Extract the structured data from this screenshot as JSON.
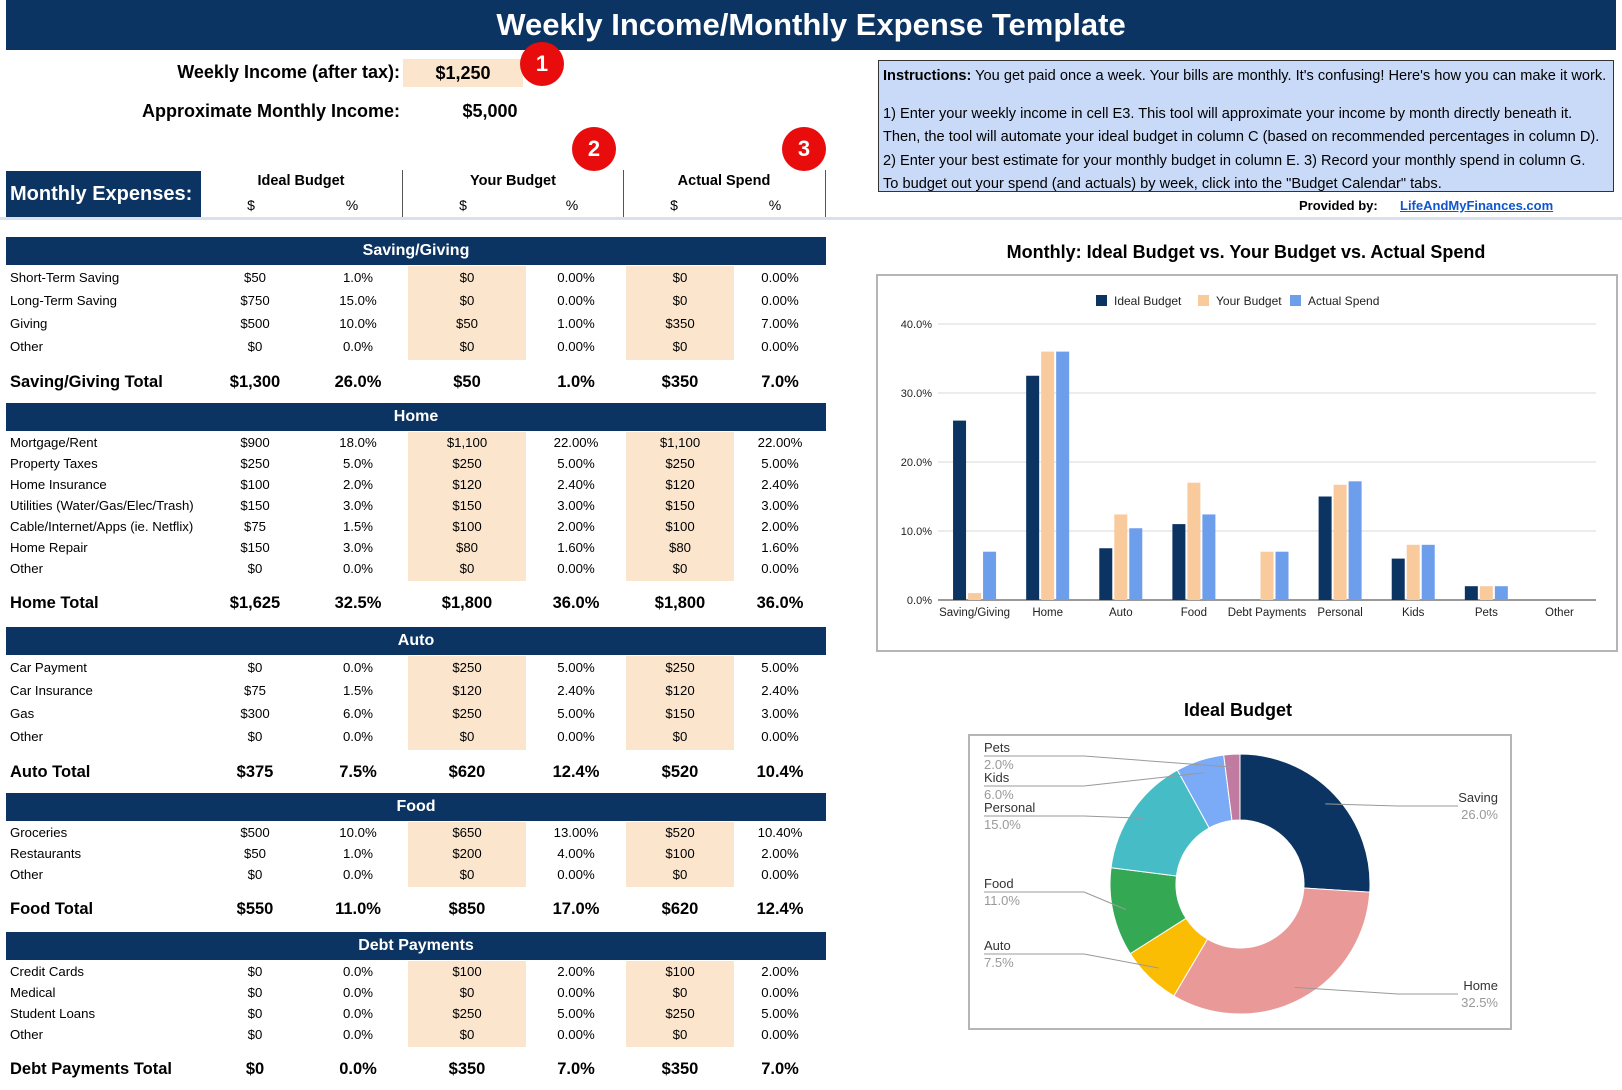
{
  "title": "Weekly Income/Monthly Expense Template",
  "income": {
    "weekly_label": "Weekly Income (after tax):",
    "weekly_value": "$1,250",
    "monthly_label": "Approximate Monthly Income:",
    "monthly_value": "$5,000"
  },
  "badges": [
    "1",
    "2",
    "3"
  ],
  "instructions": {
    "bold": "Instructions:",
    "line1": " You get paid once a week. Your bills are monthly. It's confusing! Here's how you can make it work.",
    "line2": "1) Enter your weekly income in cell E3. This tool will approximate your income by month directly beneath it.",
    "line3": "Then, the tool will automate your ideal budget in column C (based on recommended percentages in column D).",
    "line4": "2) Enter your best estimate for your monthly budget in column E. 3) Record your monthly spend in column G.",
    "line5": "To budget out your spend (and actuals) by week, click into the \"Budget Calendar\" tabs."
  },
  "provided_by": "Provided by:",
  "provided_link": "LifeAndMyFinances.com",
  "header": {
    "monthly_expenses": "Monthly Expenses:",
    "ideal": "Ideal Budget",
    "yours": "Your Budget",
    "actual": "Actual Spend",
    "dollar": "$",
    "pct": "%"
  },
  "sections": [
    {
      "name": "Saving/Giving",
      "rows": [
        [
          "Short-Term Saving",
          "$50",
          "1.0%",
          "$0",
          "0.00%",
          "$0",
          "0.00%"
        ],
        [
          "Long-Term Saving",
          "$750",
          "15.0%",
          "$0",
          "0.00%",
          "$0",
          "0.00%"
        ],
        [
          "Giving",
          "$500",
          "10.0%",
          "$50",
          "1.00%",
          "$350",
          "7.00%"
        ],
        [
          "Other",
          "$0",
          "0.0%",
          "$0",
          "0.00%",
          "$0",
          "0.00%"
        ]
      ],
      "total": [
        "Saving/Giving Total",
        "$1,300",
        "26.0%",
        "$50",
        "1.0%",
        "$350",
        "7.0%"
      ]
    },
    {
      "name": "Home",
      "rows": [
        [
          "Mortgage/Rent",
          "$900",
          "18.0%",
          "$1,100",
          "22.00%",
          "$1,100",
          "22.00%"
        ],
        [
          "Property Taxes",
          "$250",
          "5.0%",
          "$250",
          "5.00%",
          "$250",
          "5.00%"
        ],
        [
          "Home Insurance",
          "$100",
          "2.0%",
          "$120",
          "2.40%",
          "$120",
          "2.40%"
        ],
        [
          "Utilities (Water/Gas/Elec/Trash)",
          "$150",
          "3.0%",
          "$150",
          "3.00%",
          "$150",
          "3.00%"
        ],
        [
          "Cable/Internet/Apps (ie. Netflix)",
          "$75",
          "1.5%",
          "$100",
          "2.00%",
          "$100",
          "2.00%"
        ],
        [
          "Home Repair",
          "$150",
          "3.0%",
          "$80",
          "1.60%",
          "$80",
          "1.60%"
        ],
        [
          "Other",
          "$0",
          "0.0%",
          "$0",
          "0.00%",
          "$0",
          "0.00%"
        ]
      ],
      "total": [
        "Home Total",
        "$1,625",
        "32.5%",
        "$1,800",
        "36.0%",
        "$1,800",
        "36.0%"
      ]
    },
    {
      "name": "Auto",
      "rows": [
        [
          "Car Payment",
          "$0",
          "0.0%",
          "$250",
          "5.00%",
          "$250",
          "5.00%"
        ],
        [
          "Car Insurance",
          "$75",
          "1.5%",
          "$120",
          "2.40%",
          "$120",
          "2.40%"
        ],
        [
          "Gas",
          "$300",
          "6.0%",
          "$250",
          "5.00%",
          "$150",
          "3.00%"
        ],
        [
          "Other",
          "$0",
          "0.0%",
          "$0",
          "0.00%",
          "$0",
          "0.00%"
        ]
      ],
      "total": [
        "Auto Total",
        "$375",
        "7.5%",
        "$620",
        "12.4%",
        "$520",
        "10.4%"
      ]
    },
    {
      "name": "Food",
      "rows": [
        [
          "Groceries",
          "$500",
          "10.0%",
          "$650",
          "13.00%",
          "$520",
          "10.40%"
        ],
        [
          "Restaurants",
          "$50",
          "1.0%",
          "$200",
          "4.00%",
          "$100",
          "2.00%"
        ],
        [
          "Other",
          "$0",
          "0.0%",
          "$0",
          "0.00%",
          "$0",
          "0.00%"
        ]
      ],
      "total": [
        "Food Total",
        "$550",
        "11.0%",
        "$850",
        "17.0%",
        "$620",
        "12.4%"
      ]
    },
    {
      "name": "Debt Payments",
      "rows": [
        [
          "Credit Cards",
          "$0",
          "0.0%",
          "$100",
          "2.00%",
          "$100",
          "2.00%"
        ],
        [
          "Medical",
          "$0",
          "0.0%",
          "$0",
          "0.00%",
          "$0",
          "0.00%"
        ],
        [
          "Student Loans",
          "$0",
          "0.0%",
          "$250",
          "5.00%",
          "$250",
          "5.00%"
        ],
        [
          "Other",
          "$0",
          "0.0%",
          "$0",
          "0.00%",
          "$0",
          "0.00%"
        ]
      ],
      "total": [
        "Debt Payments Total",
        "$0",
        "0.0%",
        "$350",
        "7.0%",
        "$350",
        "7.0%"
      ]
    }
  ],
  "chart_data": [
    {
      "type": "bar",
      "title": "Monthly: Ideal Budget vs. Your Budget vs. Actual Spend",
      "categories": [
        "Saving/Giving",
        "Home",
        "Auto",
        "Food",
        "Debt Payments",
        "Personal",
        "Kids",
        "Pets",
        "Other"
      ],
      "series": [
        {
          "name": "Ideal Budget",
          "color": "#0c3462",
          "values": [
            26.0,
            32.5,
            7.5,
            11.0,
            0.0,
            15.0,
            6.0,
            2.0,
            0.0
          ]
        },
        {
          "name": "Your Budget",
          "color": "#f9cb9c",
          "values": [
            1.0,
            36.0,
            12.4,
            17.0,
            7.0,
            16.7,
            8.0,
            2.0,
            0.0
          ]
        },
        {
          "name": "Actual Spend",
          "color": "#6d9eeb",
          "values": [
            7.0,
            36.0,
            10.4,
            12.4,
            7.0,
            17.2,
            8.0,
            2.0,
            0.0
          ]
        }
      ],
      "yticks": [
        "0.0%",
        "10.0%",
        "20.0%",
        "30.0%",
        "40.0%"
      ],
      "ylim": [
        0,
        40
      ],
      "legend": "top",
      "grid": true
    },
    {
      "type": "pie",
      "title": "Ideal Budget",
      "donut": true,
      "slices": [
        {
          "label": "Saving",
          "pct": "26.0%",
          "value": 26.0,
          "color": "#0c3462"
        },
        {
          "label": "Home",
          "pct": "32.5%",
          "value": 32.5,
          "color": "#ea9999"
        },
        {
          "label": "Auto",
          "pct": "7.5%",
          "value": 7.5,
          "color": "#fbbc04"
        },
        {
          "label": "Food",
          "pct": "11.0%",
          "value": 11.0,
          "color": "#34a853"
        },
        {
          "label": "Personal",
          "pct": "15.0%",
          "value": 15.0,
          "color": "#46bdc6"
        },
        {
          "label": "Kids",
          "pct": "6.0%",
          "value": 6.0,
          "color": "#7baaf7"
        },
        {
          "label": "Pets",
          "pct": "2.0%",
          "value": 2.0,
          "color": "#c27ba0"
        }
      ]
    }
  ]
}
